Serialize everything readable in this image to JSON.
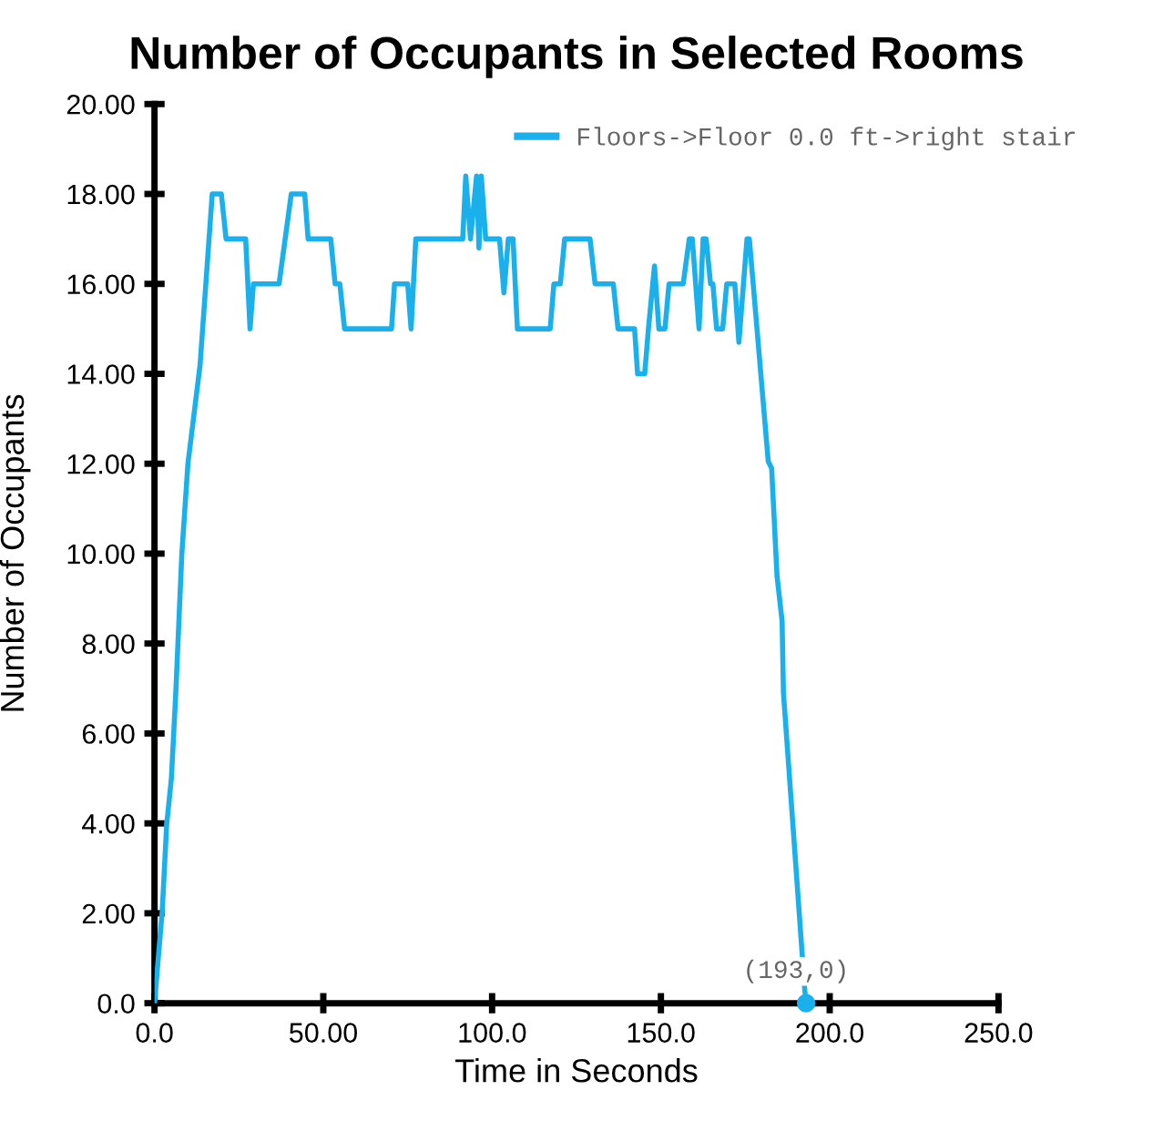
{
  "chart_data": {
    "type": "line",
    "title": "Number of Occupants in Selected Rooms",
    "xlabel": "Time in Seconds",
    "ylabel": "Number of Occupants",
    "xlim": [
      0,
      250
    ],
    "xticks": [
      {
        "value": 0,
        "label": "0.0"
      },
      {
        "value": 50,
        "label": "50.00"
      },
      {
        "value": 100,
        "label": "100.0"
      },
      {
        "value": 150,
        "label": "150.0"
      },
      {
        "value": 200,
        "label": "200.0"
      },
      {
        "value": 250,
        "label": "250.0"
      }
    ],
    "ylim": [
      0,
      20
    ],
    "yticks": [
      {
        "value": 0,
        "label": "0.0"
      },
      {
        "value": 2,
        "label": "2.00"
      },
      {
        "value": 4,
        "label": "4.00"
      },
      {
        "value": 6,
        "label": "6.00"
      },
      {
        "value": 8,
        "label": "8.00"
      },
      {
        "value": 10,
        "label": "10.00"
      },
      {
        "value": 12,
        "label": "12.00"
      },
      {
        "value": 14,
        "label": "14.00"
      },
      {
        "value": 16,
        "label": "16.00"
      },
      {
        "value": 18,
        "label": "18.00"
      },
      {
        "value": 20,
        "label": "20.00"
      }
    ],
    "grid": false,
    "legend": "top right",
    "marker": "none",
    "line_style": "solid",
    "series": [
      {
        "name": "Floors->Floor 0.0 ft->right stair",
        "color": "#1ab0ec",
        "x": [
          0,
          2.3,
          3.6,
          5.0,
          6.3,
          8.1,
          9.9,
          13.5,
          17.1,
          19.8,
          21.2,
          27,
          28.3,
          29.3,
          36.9,
          38.7,
          40.5,
          44.5,
          45.5,
          52.2,
          53.5,
          54.9,
          56.3,
          70.2,
          71.1,
          75,
          76,
          77.4,
          91.3,
          92.2,
          93.6,
          95.4,
          96.1,
          96.8,
          98.1,
          102.2,
          103.5,
          104.8,
          106.2,
          107.5,
          117.2,
          118.3,
          120.2,
          121.5,
          129,
          130.5,
          135.9,
          137.3,
          142.2,
          143.1,
          145.2,
          146.3,
          148.1,
          149.4,
          151.2,
          152.4,
          156.6,
          158.4,
          159.3,
          161.3,
          162.5,
          163.4,
          164.7,
          165.4,
          166.5,
          168.3,
          169.5,
          171.9,
          173.1,
          175.5,
          176.2,
          181.8,
          182.8,
          184.4,
          185.9,
          186.3,
          192.6,
          193
        ],
        "values": [
          0,
          2.06,
          3.97,
          5.0,
          6.9,
          10.0,
          12.0,
          14.2,
          18,
          18,
          17,
          17,
          15,
          16,
          16,
          17,
          18,
          18,
          17,
          17,
          16,
          16,
          15,
          15,
          16,
          16,
          15,
          17,
          17,
          18.4,
          17,
          18.4,
          16.8,
          18.4,
          17,
          17,
          15.8,
          17,
          17,
          15,
          15,
          16,
          16,
          17,
          17,
          16,
          16,
          15,
          15,
          14,
          14,
          15,
          16.4,
          15,
          15,
          16,
          16,
          17,
          17,
          15,
          17,
          17,
          16,
          16,
          15,
          15,
          16,
          16,
          14.7,
          17,
          17,
          12.05,
          11.9,
          9.5,
          8.5,
          6.9,
          0.3,
          0
        ]
      },
      {
        "type": "scatter",
        "color": "#1ab0ec",
        "marker": "circle",
        "x": [
          193
        ],
        "values": [
          0
        ]
      }
    ],
    "annotations": [
      {
        "text": "(193,0)",
        "x": 193,
        "y": 0
      }
    ]
  }
}
